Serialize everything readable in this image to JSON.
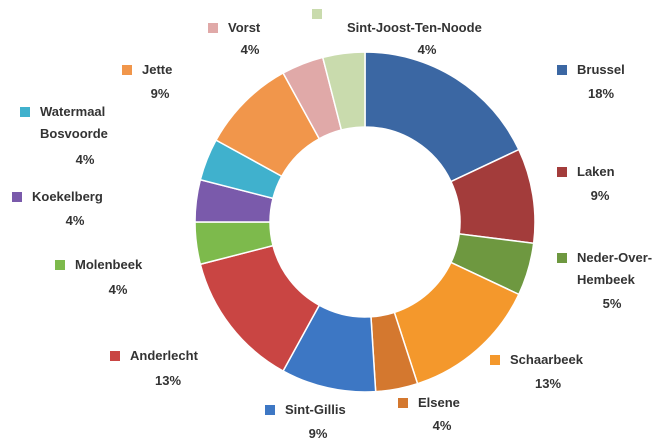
{
  "chart_data": {
    "type": "donut",
    "categories": [
      "Brussel",
      "Laken",
      "Neder-Over-Hembeek",
      "Schaarbeek",
      "Elsene",
      "Sint-Gillis",
      "Anderlecht",
      "Molenbeek",
      "Koekelberg",
      "Watermaal Bosvoorde",
      "Jette",
      "Vorst",
      "Sint-Joost-Ten-Noode"
    ],
    "values": [
      18,
      9,
      5,
      13,
      4,
      9,
      13,
      4,
      4,
      4,
      9,
      4,
      4
    ],
    "value_labels": [
      "18%",
      "9%",
      "5%",
      "13%",
      "4%",
      "9%",
      "13%",
      "4%",
      "4%",
      "4%",
      "9%",
      "4%",
      "4%"
    ],
    "colors": [
      "#3b67a3",
      "#a33c3b",
      "#6e9840",
      "#f4982c",
      "#d4782f",
      "#3d77c4",
      "#c94543",
      "#7dba4c",
      "#7a5aab",
      "#40b1cd",
      "#f1964b",
      "#e0a9a8",
      "#c9dbad"
    ]
  }
}
